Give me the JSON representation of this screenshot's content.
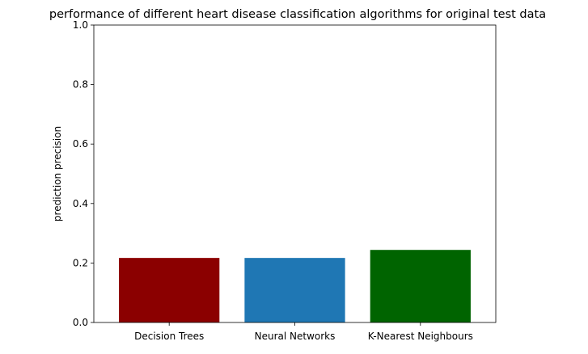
{
  "chart_data": {
    "type": "bar",
    "title": "performance of different heart disease classification algorithms for original test data",
    "xlabel": "",
    "ylabel": "prediction precision",
    "categories": [
      "Decision Trees",
      "Neural Networks",
      "K-Nearest Neighbours"
    ],
    "values": [
      0.217,
      0.217,
      0.244
    ],
    "colors": [
      "#8b0000",
      "#1f77b4",
      "#006400"
    ],
    "ylim": [
      0,
      1.0
    ],
    "yticks": [
      "0.0",
      "0.2",
      "0.4",
      "0.6",
      "0.8",
      "1.0"
    ],
    "grid": false,
    "legend": "none"
  }
}
